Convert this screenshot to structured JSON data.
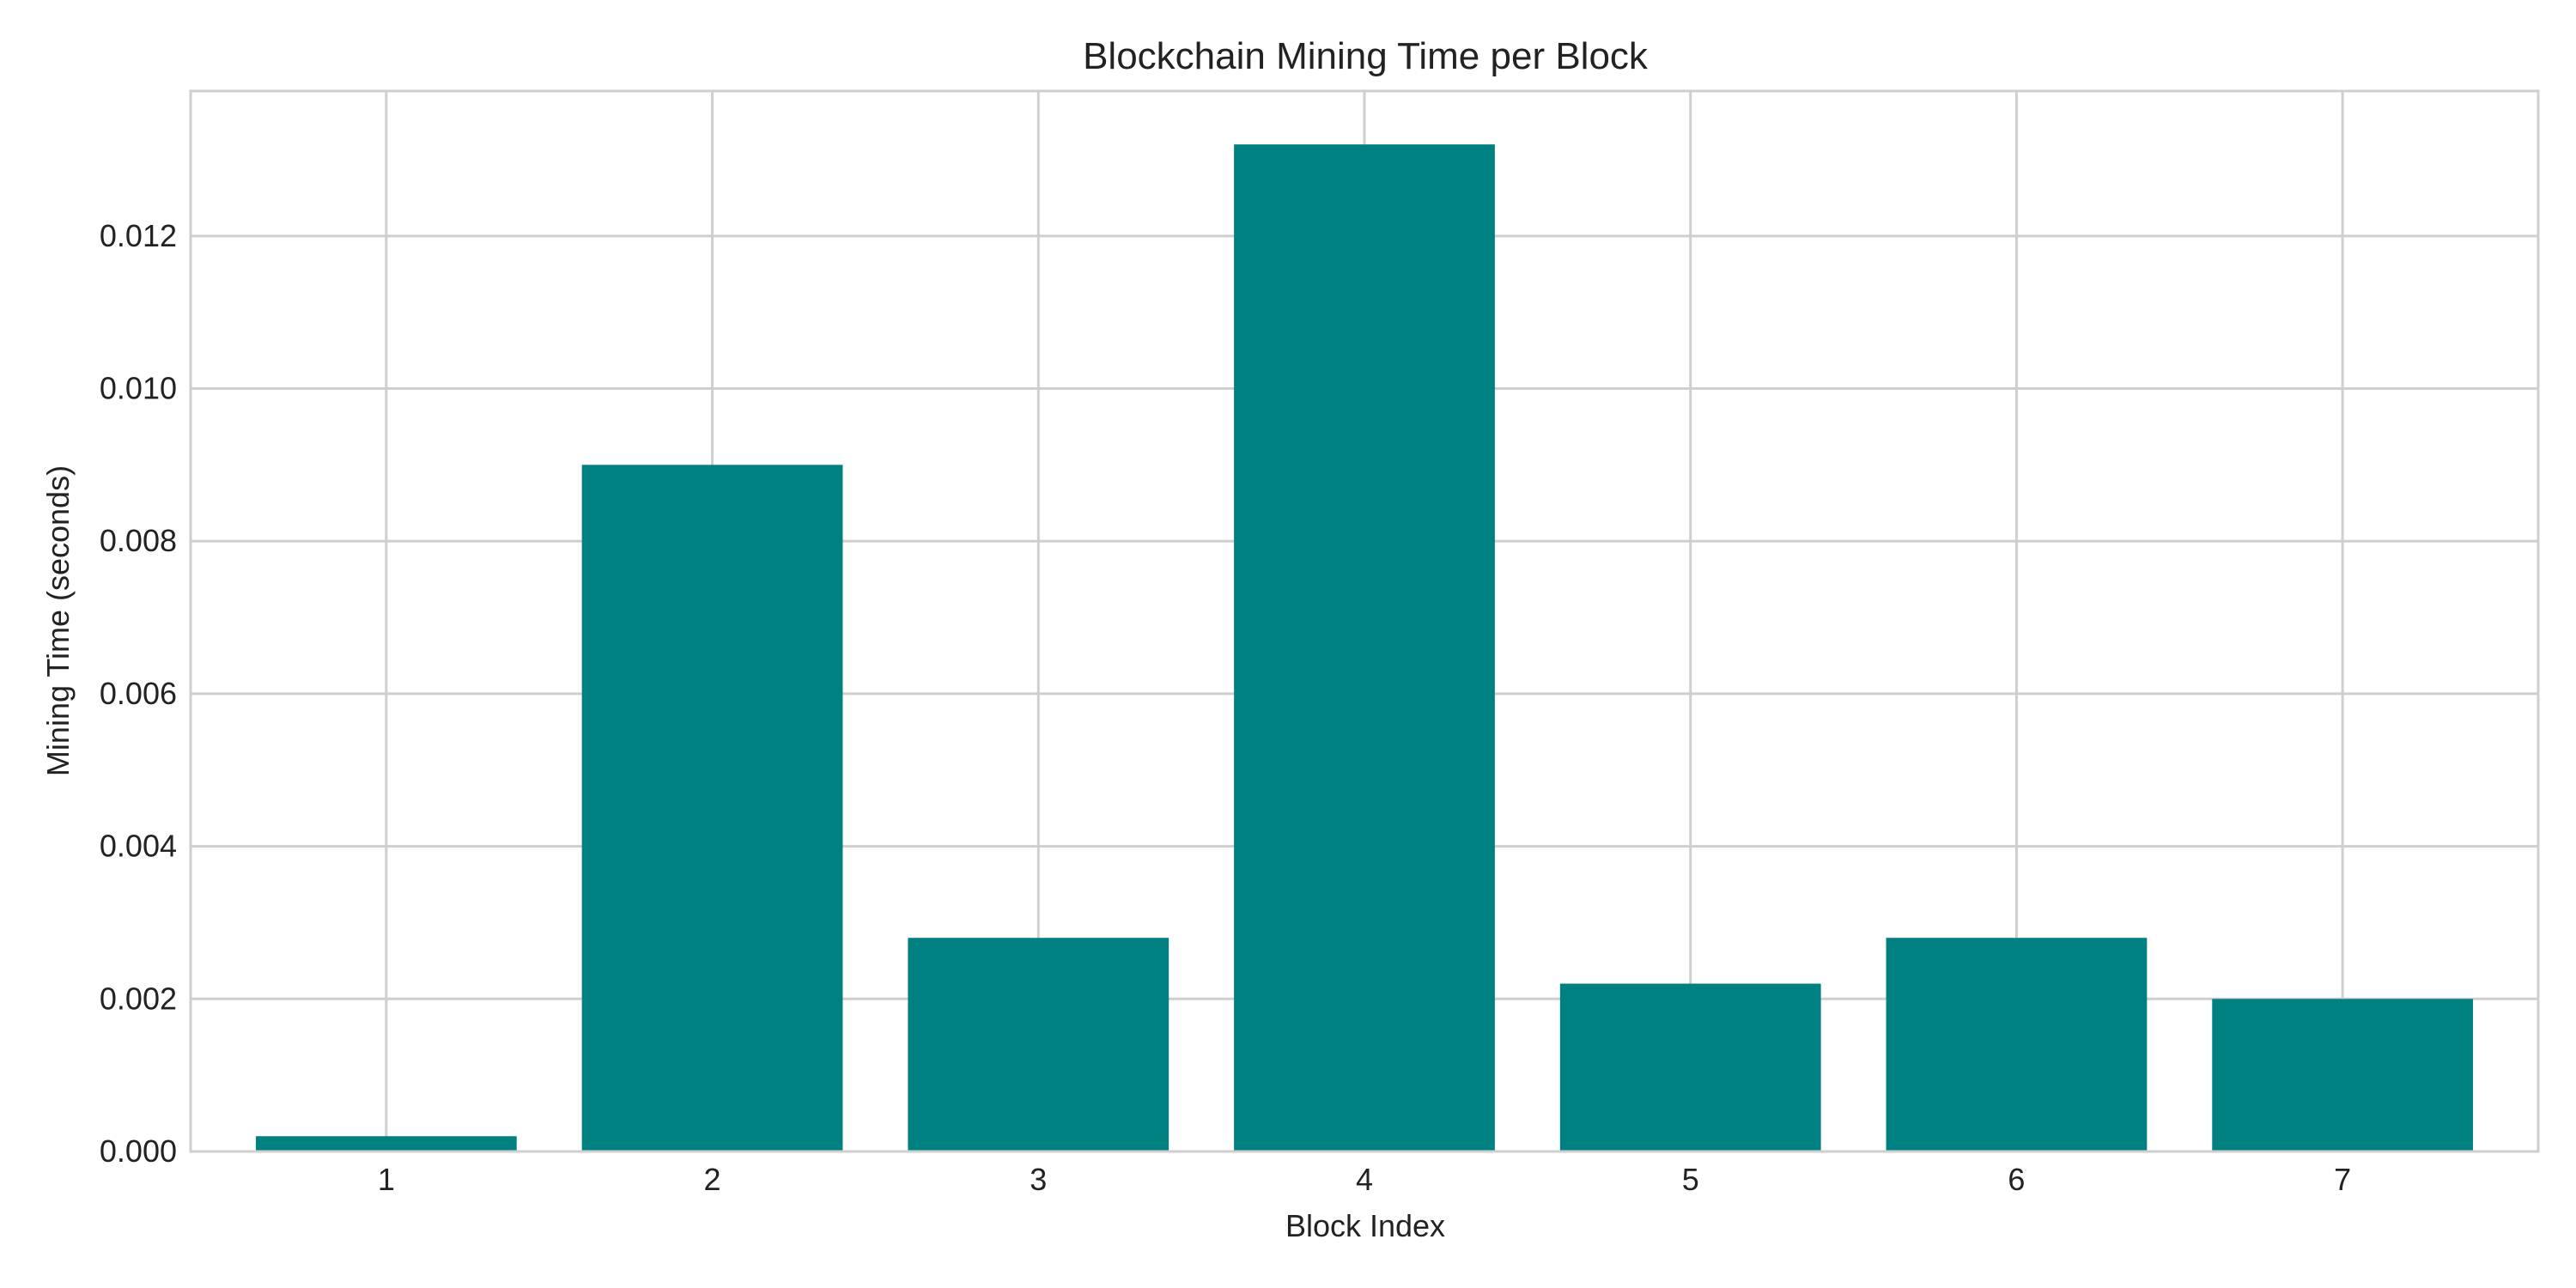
{
  "chart_data": {
    "type": "bar",
    "title": "Blockchain Mining Time per Block",
    "xlabel": "Block Index",
    "ylabel": "Mining Time (seconds)",
    "categories": [
      "1",
      "2",
      "3",
      "4",
      "5",
      "6",
      "7"
    ],
    "values": [
      0.0002,
      0.009,
      0.0028,
      0.0132,
      0.0022,
      0.0028,
      0.002
    ],
    "ylim": [
      0,
      0.0139
    ],
    "yticks": [
      0.0,
      0.002,
      0.004,
      0.006,
      0.008,
      0.01,
      0.012
    ],
    "ytick_labels": [
      "0.000",
      "0.002",
      "0.004",
      "0.006",
      "0.008",
      "0.010",
      "0.012"
    ],
    "grid": true,
    "bar_color": "#008080",
    "grid_color": "#cfcfcf",
    "legend": null
  }
}
